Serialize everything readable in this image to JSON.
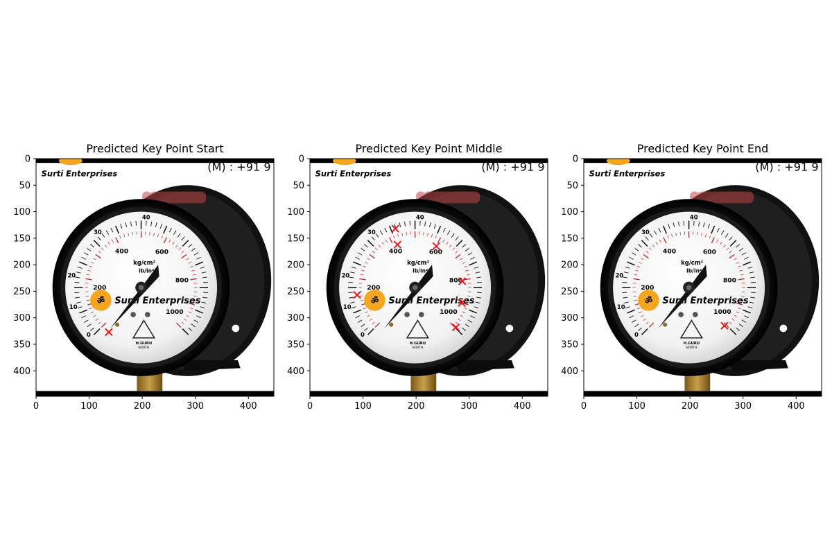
{
  "figure": {
    "background": "#ffffff",
    "marker_color": "#e8181c"
  },
  "image_content": {
    "header_left": "Surti Enterprises",
    "header_right": "(M) : +91 9",
    "gauge_unit_kg": "kg/cm²",
    "gauge_unit_lb": "lb/in²",
    "gauge_brand": "Surti Enterprises",
    "maker_line1": "H.GURU",
    "maker_line2": "NORTH",
    "kg_scale": [
      "0",
      "10",
      "20",
      "30",
      "40"
    ],
    "lb_scale": [
      "200",
      "400",
      "600",
      "800",
      "1000"
    ]
  },
  "chart_data": [
    {
      "type": "scatter",
      "title": "Predicted Key Point Start",
      "xlabel": "",
      "ylabel": "",
      "xlim": [
        0,
        448
      ],
      "ylim": [
        448,
        0
      ],
      "xticks": [
        "0",
        "100",
        "200",
        "300",
        "400"
      ],
      "yticks": [
        "0",
        "50",
        "100",
        "150",
        "200",
        "250",
        "300",
        "350",
        "400"
      ],
      "points": [
        {
          "x": 137,
          "y": 327
        }
      ]
    },
    {
      "type": "scatter",
      "title": "Predicted Key Point Middle",
      "xlabel": "",
      "ylabel": "",
      "xlim": [
        0,
        448
      ],
      "ylim": [
        448,
        0
      ],
      "xticks": [
        "0",
        "100",
        "200",
        "300",
        "400"
      ],
      "yticks": [
        "0",
        "50",
        "100",
        "150",
        "200",
        "250",
        "300",
        "350",
        "400"
      ],
      "points": [
        {
          "x": 89,
          "y": 257
        },
        {
          "x": 161,
          "y": 132
        },
        {
          "x": 165,
          "y": 162
        },
        {
          "x": 238,
          "y": 165
        },
        {
          "x": 287,
          "y": 231
        },
        {
          "x": 286,
          "y": 272
        },
        {
          "x": 275,
          "y": 318
        }
      ]
    },
    {
      "type": "scatter",
      "title": "Predicted Key Point End",
      "xlabel": "",
      "ylabel": "",
      "xlim": [
        0,
        448
      ],
      "ylim": [
        448,
        0
      ],
      "xticks": [
        "0",
        "100",
        "200",
        "300",
        "400"
      ],
      "yticks": [
        "0",
        "50",
        "100",
        "150",
        "200",
        "250",
        "300",
        "350",
        "400"
      ],
      "points": [
        {
          "x": 265,
          "y": 315
        }
      ]
    }
  ]
}
